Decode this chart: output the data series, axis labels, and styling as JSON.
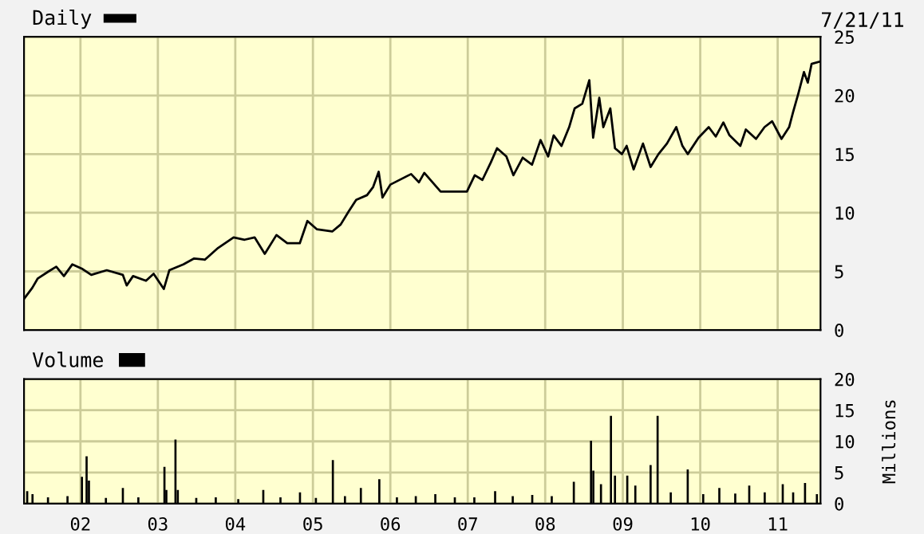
{
  "chart_data": [
    {
      "type": "line",
      "legend": "top left",
      "grid": true,
      "tick_labels": "y",
      "annotations": [
        "7/21/11"
      ],
      "xlim": [
        "2001-04-10",
        "2011-07-22"
      ],
      "xticks": [
        {
          "value": "2002-01-01",
          "label": null
        },
        {
          "value": "2003-01-01",
          "label": null
        },
        {
          "value": "2004-01-01",
          "label": null
        },
        {
          "value": "2005-01-01",
          "label": null
        },
        {
          "value": "2006-01-01",
          "label": null
        },
        {
          "value": "2007-01-01",
          "label": null
        },
        {
          "value": "2008-01-01",
          "label": null
        },
        {
          "value": "2009-01-01",
          "label": null
        },
        {
          "value": "2010-01-01",
          "label": null
        },
        {
          "value": "2011-01-01",
          "label": null
        }
      ],
      "ylim": [
        0,
        25
      ],
      "yticks": [
        0,
        5,
        10,
        15,
        20,
        25
      ],
      "x": [
        "2001-04-12",
        "2001-05-19",
        "2001-06-14",
        "2001-08-04",
        "2001-09-09",
        "2001-10-15",
        "2001-11-24",
        "2002-01-11",
        "2002-02-21",
        "2002-05-05",
        "2002-07-20",
        "2002-08-07",
        "2002-09-06",
        "2002-11-06",
        "2002-12-12",
        "2003-01-29",
        "2003-02-24",
        "2003-05-01",
        "2003-06-21",
        "2003-08-11",
        "2003-10-12",
        "2003-12-24",
        "2004-02-14",
        "2004-04-01",
        "2004-05-19",
        "2004-07-13",
        "2004-09-02",
        "2004-10-31",
        "2004-12-06",
        "2005-01-19",
        "2005-04-02",
        "2005-05-12",
        "2005-06-18",
        "2005-07-24",
        "2005-09-13",
        "2005-10-12",
        "2005-11-07",
        "2005-11-25",
        "2006-01-01",
        "2006-04-09",
        "2006-05-16",
        "2006-06-10",
        "2006-08-26",
        "2006-11-21",
        "2006-12-28",
        "2007-02-03",
        "2007-03-11",
        "2007-04-20",
        "2007-05-19",
        "2007-07-02",
        "2007-08-04",
        "2007-09-17",
        "2007-10-31",
        "2007-12-10",
        "2008-01-15",
        "2008-02-10",
        "2008-03-18",
        "2008-04-23",
        "2008-05-19",
        "2008-06-24",
        "2008-07-27",
        "2008-08-14",
        "2008-09-12",
        "2008-10-01",
        "2008-11-03",
        "2008-11-25",
        "2008-12-28",
        "2009-01-19",
        "2009-02-21",
        "2009-04-06",
        "2009-05-12",
        "2009-06-18",
        "2009-07-28",
        "2009-09-10",
        "2009-10-09",
        "2009-11-03",
        "2009-12-24",
        "2010-02-10",
        "2010-03-15",
        "2010-04-20",
        "2010-05-19",
        "2010-07-09",
        "2010-08-04",
        "2010-09-21",
        "2010-10-31",
        "2010-12-06",
        "2011-01-19",
        "2011-02-24",
        "2011-03-15",
        "2011-04-09",
        "2011-05-05",
        "2011-05-23",
        "2011-06-10",
        "2011-07-20"
      ],
      "series": [
        {
          "name": "Daily",
          "color": "#000000",
          "values": [
            2.7,
            3.6,
            4.4,
            5.0,
            5.4,
            4.6,
            5.6,
            5.2,
            4.7,
            5.1,
            4.7,
            3.8,
            4.6,
            4.2,
            4.8,
            3.5,
            5.1,
            5.6,
            6.1,
            6.0,
            7.0,
            7.9,
            7.7,
            7.9,
            6.5,
            8.1,
            7.4,
            7.4,
            9.3,
            8.6,
            8.4,
            9.0,
            10.1,
            11.1,
            11.5,
            12.2,
            13.5,
            11.3,
            12.4,
            13.3,
            12.6,
            13.4,
            11.8,
            11.8,
            11.8,
            13.2,
            12.8,
            14.3,
            15.5,
            14.8,
            13.2,
            14.7,
            14.1,
            16.2,
            14.8,
            16.6,
            15.7,
            17.3,
            18.9,
            19.3,
            21.3,
            16.4,
            19.8,
            17.3,
            18.9,
            15.5,
            15.0,
            15.7,
            13.7,
            15.9,
            13.9,
            15.0,
            15.9,
            17.3,
            15.7,
            15.0,
            16.4,
            17.3,
            16.5,
            17.7,
            16.6,
            15.7,
            17.1,
            16.3,
            17.3,
            17.8,
            16.3,
            17.3,
            18.6,
            20.2,
            22.0,
            21.1,
            22.7,
            22.9
          ]
        }
      ]
    },
    {
      "type": "bar",
      "legend": "top left",
      "grid": true,
      "ylabel": "Millions",
      "xlim": [
        "2001-04-10",
        "2011-07-22"
      ],
      "xticks": [
        {
          "value": "2002-01-01",
          "label": "02"
        },
        {
          "value": "2003-01-01",
          "label": "03"
        },
        {
          "value": "2004-01-01",
          "label": "04"
        },
        {
          "value": "2005-01-01",
          "label": "05"
        },
        {
          "value": "2006-01-01",
          "label": "06"
        },
        {
          "value": "2007-01-01",
          "label": "07"
        },
        {
          "value": "2008-01-01",
          "label": "08"
        },
        {
          "value": "2009-01-01",
          "label": "09"
        },
        {
          "value": "2010-01-01",
          "label": "10"
        },
        {
          "value": "2011-01-01",
          "label": "11"
        }
      ],
      "ylim": [
        0,
        20
      ],
      "yticks": [
        0,
        5,
        10,
        15,
        20
      ],
      "x": [
        "2001-04-25",
        "2001-05-20",
        "2001-08-01",
        "2001-11-01",
        "2002-01-08",
        "2002-01-30",
        "2002-02-10",
        "2002-05-01",
        "2002-07-20",
        "2002-10-01",
        "2003-02-01",
        "2003-02-10",
        "2003-03-25",
        "2003-04-05",
        "2003-07-01",
        "2003-10-01",
        "2004-01-15",
        "2004-05-12",
        "2004-08-01",
        "2004-11-01",
        "2005-01-15",
        "2005-04-05",
        "2005-06-01",
        "2005-08-15",
        "2005-11-10",
        "2006-02-01",
        "2006-05-01",
        "2006-08-01",
        "2006-11-01",
        "2007-02-01",
        "2007-05-10",
        "2007-08-01",
        "2007-11-01",
        "2008-02-01",
        "2008-05-15",
        "2008-08-04",
        "2008-08-15",
        "2008-09-20",
        "2008-11-06",
        "2008-11-25",
        "2009-01-22",
        "2009-03-01",
        "2009-05-12",
        "2009-06-14",
        "2009-08-15",
        "2009-11-03",
        "2010-01-15",
        "2010-04-01",
        "2010-06-15",
        "2010-08-20",
        "2010-11-01",
        "2011-01-25",
        "2011-03-15",
        "2011-05-10",
        "2011-07-05"
      ],
      "series": [
        {
          "name": "Volume",
          "color": "#000000",
          "values": [
            2.0,
            1.5,
            1.0,
            1.2,
            4.3,
            7.6,
            3.7,
            0.9,
            2.5,
            1.0,
            5.9,
            2.2,
            10.3,
            2.2,
            0.9,
            1.0,
            0.7,
            2.2,
            1.0,
            1.8,
            0.9,
            7.0,
            1.2,
            2.5,
            3.9,
            1.0,
            1.2,
            1.5,
            1.0,
            1.0,
            2.0,
            1.2,
            1.4,
            1.2,
            3.5,
            10.1,
            5.3,
            3.1,
            14.1,
            4.5,
            4.5,
            2.9,
            6.2,
            14.1,
            1.8,
            5.5,
            1.5,
            2.5,
            1.6,
            2.9,
            1.8,
            3.1,
            1.8,
            3.3,
            1.5
          ]
        }
      ]
    }
  ]
}
